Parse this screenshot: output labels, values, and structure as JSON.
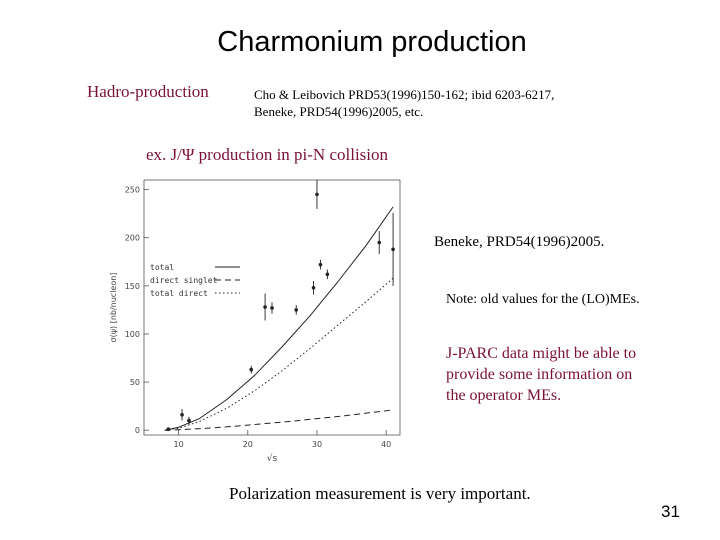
{
  "slide": {
    "title": "Charmonium production",
    "subtitle": "Hadro-production",
    "citation_line1": "Cho & Leibovich PRD53(1996)150-162; ibid 6203-6217,",
    "citation_line2": "Beneke, PRD54(1996)2005, etc.",
    "example": "ex. J/Ψ production in pi-N collision",
    "ref": "Beneke, PRD54(1996)2005.",
    "note": "Note: old values for the (LO)MEs.",
    "jparc_line1": "J-PARC data might be able to",
    "jparc_line2": "provide some information on",
    "jparc_line3": "the operator MEs.",
    "polarization": "Polarization measurement is very important.",
    "page_number": "31"
  },
  "chart_data": {
    "type": "line",
    "xlabel": "√s",
    "ylabel": "σ(ψ) [nb/nucleon]",
    "xlim": [
      5,
      42
    ],
    "ylim": [
      -5,
      260
    ],
    "x_ticks": [
      "10",
      "20",
      "30",
      "40"
    ],
    "y_ticks": [
      "0",
      "50",
      "100",
      "150",
      "200",
      "250"
    ],
    "legend": [
      "total",
      "direct singlet",
      "total direct"
    ],
    "series": [
      {
        "name": "total",
        "style": "solid",
        "x": [
          8,
          10,
          13,
          17,
          21,
          25,
          29,
          33,
          37,
          41
        ],
        "y": [
          0,
          3,
          12,
          32,
          57,
          87,
          119,
          154,
          191,
          232
        ]
      },
      {
        "name": "total direct",
        "style": "dotted",
        "x": [
          8,
          10,
          13,
          17,
          21,
          25,
          29,
          33,
          37,
          41
        ],
        "y": [
          0,
          2,
          9,
          23,
          41,
          62,
          85,
          109,
          133,
          158
        ]
      },
      {
        "name": "direct singlet",
        "style": "dashed",
        "x": [
          8,
          10,
          14,
          18,
          22,
          26,
          30,
          34,
          38,
          41
        ],
        "y": [
          0,
          0.5,
          2,
          4,
          6.5,
          9,
          12,
          15,
          18.5,
          21
        ]
      }
    ],
    "points": [
      {
        "x": 8.5,
        "y": 1,
        "err": 2
      },
      {
        "x": 10.5,
        "y": 16,
        "err": 6
      },
      {
        "x": 11.5,
        "y": 10,
        "err": 4
      },
      {
        "x": 20.5,
        "y": 63,
        "err": 4
      },
      {
        "x": 22.5,
        "y": 128,
        "err": 14
      },
      {
        "x": 23.5,
        "y": 127,
        "err": 6
      },
      {
        "x": 27,
        "y": 125,
        "err": 5
      },
      {
        "x": 29.5,
        "y": 148,
        "err": 7
      },
      {
        "x": 30.5,
        "y": 172,
        "err": 5
      },
      {
        "x": 31.5,
        "y": 162,
        "err": 5
      },
      {
        "x": 39,
        "y": 195,
        "err": 12
      },
      {
        "x": 41,
        "y": 188,
        "err": 38
      },
      {
        "x": 30,
        "y": 245,
        "err": 15
      }
    ]
  }
}
